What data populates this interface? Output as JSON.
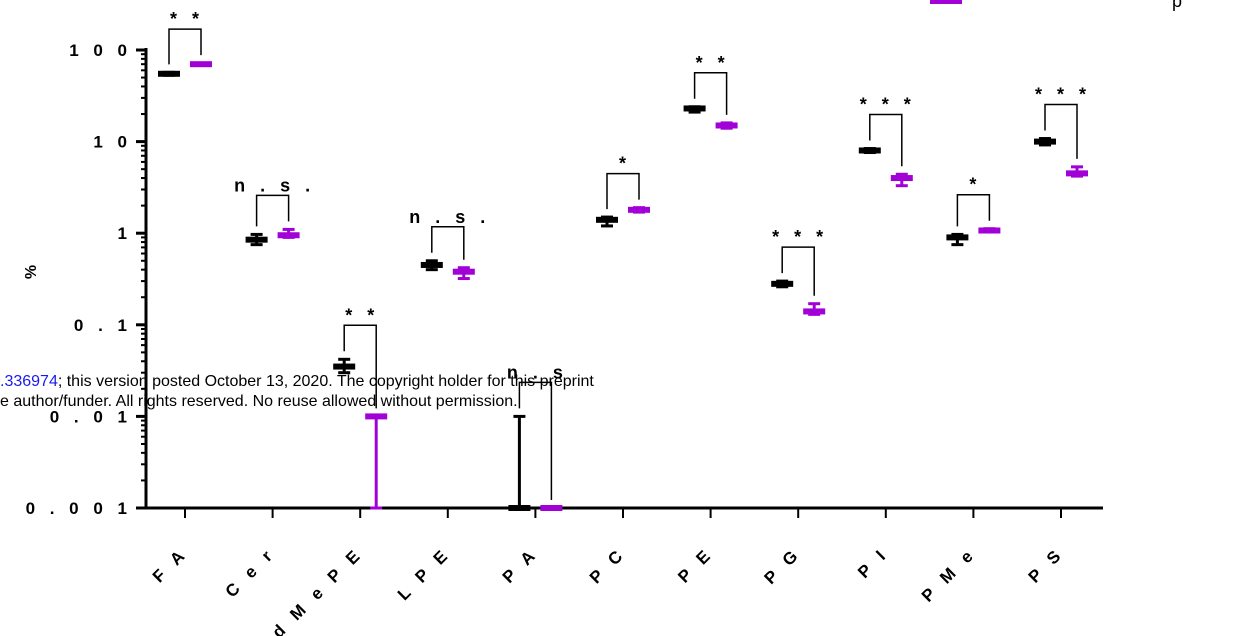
{
  "colors": {
    "series_0": "#000000",
    "series_1": "#a100d6",
    "axis": "#000000",
    "link": "#1a1aee"
  },
  "watermark": {
    "line1_link": ".336974",
    "line1_text": "; this version posted October 13, 2020. The copyright holder for this preprint",
    "line2_text": "e author/funder. All rights reserved. No reuse allowed without permission."
  },
  "legend": {
    "entry_text": "p"
  },
  "chart_data": {
    "type": "scatter",
    "title": "",
    "xlabel": "",
    "ylabel": "%",
    "yscale": "log",
    "ylim": [
      0.001,
      100
    ],
    "yticks": [
      {
        "value": 100,
        "label": "1 0 0"
      },
      {
        "value": 10,
        "label": "1 0"
      },
      {
        "value": 1,
        "label": "1"
      },
      {
        "value": 0.1,
        "label": "0 . 1"
      },
      {
        "value": 0.01,
        "label": "0 . 0 1"
      },
      {
        "value": 0.001,
        "label": "0 . 0 0 1"
      }
    ],
    "categories": [
      "F A",
      "C e r",
      "d M e P E",
      "L P E",
      "P A",
      "P C",
      "P E",
      "P G",
      "P I",
      "P M e",
      "P S"
    ],
    "series": [
      {
        "values": [
          55,
          0.85,
          0.035,
          0.45,
          0.001,
          1.4,
          23,
          0.28,
          8,
          0.9,
          10
        ],
        "err_low": [
          53,
          0.75,
          0.03,
          0.4,
          0.001,
          1.2,
          21,
          0.26,
          7.6,
          0.75,
          9.2
        ],
        "err_high": [
          57,
          0.97,
          0.042,
          0.5,
          0.01,
          1.5,
          24,
          0.3,
          8.4,
          0.97,
          10.8
        ]
      },
      {
        "values": [
          70,
          0.95,
          0.01,
          0.38,
          0.001,
          1.8,
          15,
          0.14,
          4,
          1.07,
          4.5
        ],
        "err_low": [
          68,
          0.9,
          0.001,
          0.32,
          0.001,
          1.7,
          14,
          0.13,
          3.3,
          1.03,
          4.2
        ],
        "err_high": [
          72,
          1.1,
          0.01,
          0.42,
          0.001,
          1.9,
          16,
          0.17,
          4.4,
          1.12,
          5.3
        ]
      }
    ],
    "significance": [
      {
        "category": 0,
        "label": "* *"
      },
      {
        "category": 1,
        "label": "n . s ."
      },
      {
        "category": 2,
        "label": "* *"
      },
      {
        "category": 3,
        "label": "n . s ."
      },
      {
        "category": 4,
        "label": "n . s"
      },
      {
        "category": 5,
        "label": "*"
      },
      {
        "category": 6,
        "label": "* *"
      },
      {
        "category": 7,
        "label": "* * *"
      },
      {
        "category": 8,
        "label": "* * *"
      },
      {
        "category": 9,
        "label": "*"
      },
      {
        "category": 10,
        "label": "* * *"
      }
    ]
  }
}
